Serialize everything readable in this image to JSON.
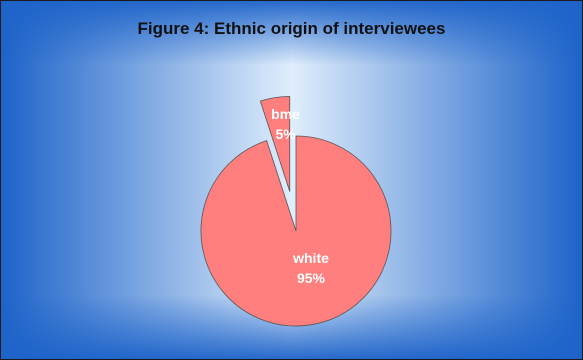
{
  "chart_data": {
    "type": "pie",
    "title": "Figure 4: Ethnic origin of interviewees",
    "slices": [
      {
        "label": "white",
        "value": 95,
        "value_label": "95%",
        "color": "#FF7F7F"
      },
      {
        "label": "bme",
        "value": 5,
        "value_label": "5%",
        "color": "#FF7F7F"
      }
    ],
    "exploded": [
      "bme"
    ],
    "background": {
      "center": "#e0eefc",
      "edge": "#1d63c9"
    },
    "slice_outline": "#555555"
  }
}
